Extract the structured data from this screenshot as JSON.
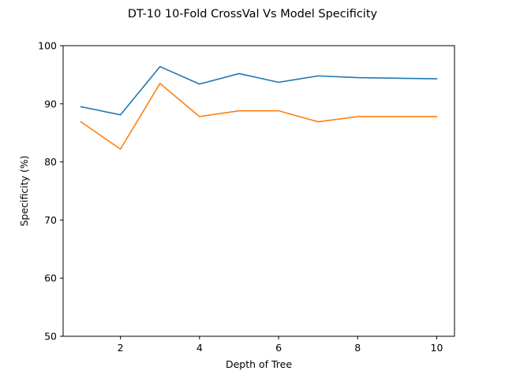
{
  "chart_data": {
    "type": "line",
    "title": "DT-10 10-Fold CrossVal Vs Model Specificity",
    "xlabel": "Depth of Tree",
    "ylabel": "Specificity (%)",
    "xlim": [
      0.55,
      10.45
    ],
    "ylim": [
      50,
      100
    ],
    "xticks": [
      2,
      4,
      6,
      8,
      10
    ],
    "yticks": [
      50,
      60,
      70,
      80,
      90,
      100
    ],
    "grid": false,
    "x": [
      1,
      2,
      3,
      4,
      5,
      6,
      7,
      8,
      9,
      10
    ],
    "series": [
      {
        "color": "#1f77b4",
        "values": [
          89.5,
          88.1,
          96.4,
          93.4,
          95.2,
          93.7,
          94.8,
          94.5,
          94.4,
          94.3
        ]
      },
      {
        "color": "#ff7f0e",
        "values": [
          86.9,
          82.2,
          93.5,
          87.8,
          88.8,
          88.8,
          86.9,
          87.8,
          87.8,
          87.8
        ]
      }
    ]
  }
}
